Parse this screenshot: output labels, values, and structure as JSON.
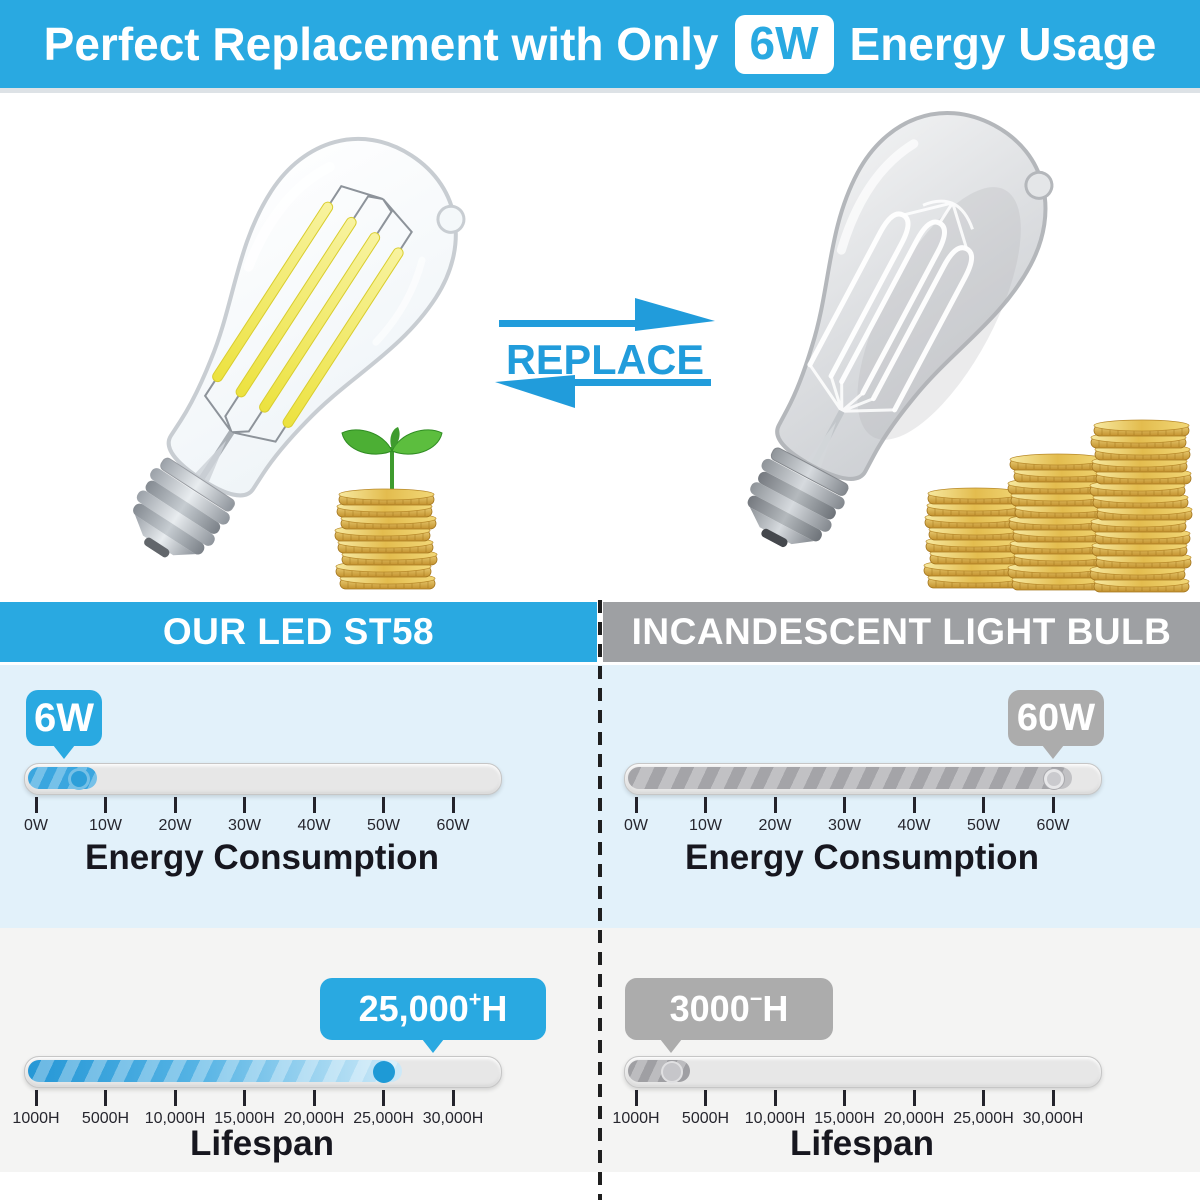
{
  "header": {
    "text_before": "Perfect Replacement with Only",
    "highlight": "6W",
    "text_after": "Energy Usage"
  },
  "middle": {
    "replace_label": "REPLACE",
    "icons": {
      "replace_arrows": "swap-arrows",
      "led_side": "coin-stack-with-green-sprout",
      "incandescent_side": "three-ascending-coin-stacks"
    }
  },
  "led_panel": {
    "title": "OUR LED ST58",
    "energy": {
      "badge": "6W",
      "label": "Energy Consumption",
      "ticks": [
        "0W",
        "10W",
        "20W",
        "30W",
        "40W",
        "50W",
        "60W"
      ]
    },
    "lifespan": {
      "badge_value": "25,000",
      "badge_sup": "+",
      "badge_unit": "H",
      "label": "Lifespan",
      "ticks": [
        "1000H",
        "5000H",
        "10,000H",
        "15,000H",
        "20,000H",
        "25,000H",
        "30,000H"
      ]
    }
  },
  "inc_panel": {
    "title": "INCANDESCENT LIGHT BULB",
    "energy": {
      "badge": "60W",
      "label": "Energy Consumption",
      "ticks": [
        "0W",
        "10W",
        "20W",
        "30W",
        "40W",
        "50W",
        "60W"
      ]
    },
    "lifespan": {
      "badge_value": "3000",
      "badge_sup": "−",
      "badge_unit": "H",
      "label": "Lifespan",
      "ticks": [
        "1000H",
        "5000H",
        "10,000H",
        "15,000H",
        "20,000H",
        "25,000H",
        "30,000H"
      ]
    }
  },
  "sliders": {
    "led_energy": {
      "fraction": 0.1
    },
    "inc_energy": {
      "fraction": 1.0
    },
    "led_lifespan": {
      "fraction": 0.8333
    },
    "inc_lifespan": {
      "fraction": 0.0833
    }
  },
  "colors": {
    "accent_blue": "#29A9E1",
    "badge_gray": "#ACACAC",
    "energy_panel_bg": "#E2F1FA",
    "lifespan_panel_bg": "#F4F4F3",
    "dark_text": "#17171f"
  }
}
